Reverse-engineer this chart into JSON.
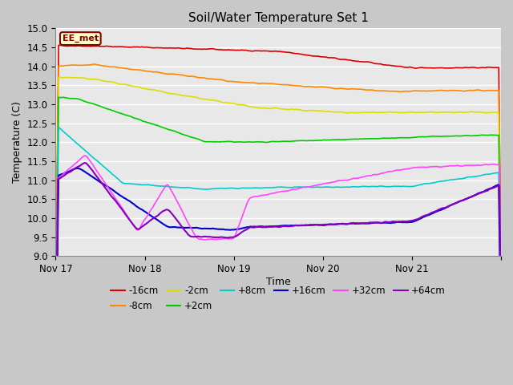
{
  "title": "Soil/Water Temperature Set 1",
  "xlabel": "Time",
  "ylabel": "Temperature (C)",
  "ylim": [
    9.0,
    15.0
  ],
  "yticks": [
    9.0,
    9.5,
    10.0,
    10.5,
    11.0,
    11.5,
    12.0,
    12.5,
    13.0,
    13.5,
    14.0,
    14.5,
    15.0
  ],
  "fig_bg_color": "#d0d0d0",
  "plot_bg_color": "#e8e8e8",
  "annotation_text": "EE_met",
  "annotation_bg": "#ffffcc",
  "annotation_border": "#8B0000",
  "series": {
    "-16cm": {
      "color": "#dd0000",
      "lw": 1.2
    },
    "-8cm": {
      "color": "#ff8800",
      "lw": 1.2
    },
    "-2cm": {
      "color": "#dddd00",
      "lw": 1.2
    },
    "+2cm": {
      "color": "#00cc00",
      "lw": 1.2
    },
    "+8cm": {
      "color": "#00cccc",
      "lw": 1.2
    },
    "+16cm": {
      "color": "#0000cc",
      "lw": 1.5
    },
    "+32cm": {
      "color": "#ff44ff",
      "lw": 1.2
    },
    "+64cm": {
      "color": "#8800bb",
      "lw": 1.5
    }
  },
  "x_tick_labels": [
    "Nov 17",
    "Nov 18",
    "Nov 19",
    "Nov 20",
    "Nov 21",
    ""
  ],
  "x_tick_positions": [
    0,
    24,
    48,
    72,
    96,
    120
  ]
}
